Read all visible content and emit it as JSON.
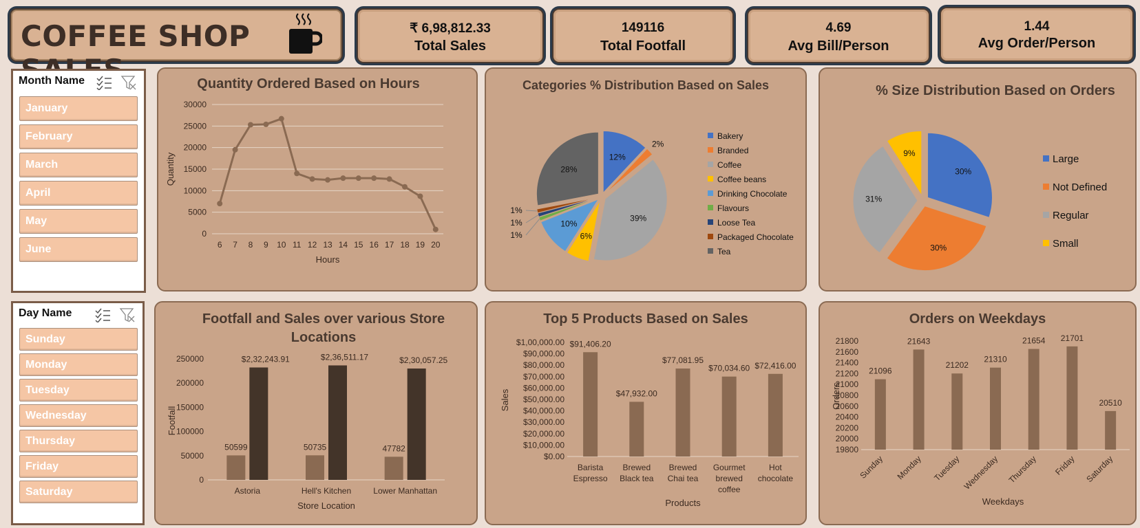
{
  "dashboard": {
    "title": "COFFEE SHOP SALES",
    "kpis": [
      {
        "value": "₹ 6,98,812.33",
        "label": "Total Sales"
      },
      {
        "value": "149116",
        "label": "Total Footfall"
      },
      {
        "value": "4.69",
        "label": "Avg Bill/Person"
      },
      {
        "value": "1.44",
        "label": "Avg Order/Person"
      }
    ]
  },
  "slicers": {
    "month": {
      "title": "Month Name",
      "items": [
        "January",
        "February",
        "March",
        "April",
        "May",
        "June"
      ]
    },
    "day": {
      "title": "Day Name",
      "items": [
        "Sunday",
        "Monday",
        "Tuesday",
        "Wednesday",
        "Thursday",
        "Friday",
        "Saturday"
      ]
    }
  },
  "colors": {
    "bar": "#8a6a52",
    "bar_dark": "#433429",
    "line": "#8a6a52",
    "panel": "#c9a489"
  },
  "chart_data": [
    {
      "id": "hours",
      "type": "line",
      "title": "Quantity Ordered Based on Hours",
      "xlabel": "Hours",
      "ylabel": "Quantity",
      "x": [
        6,
        7,
        8,
        9,
        10,
        11,
        12,
        13,
        14,
        15,
        16,
        17,
        18,
        19,
        20
      ],
      "values": [
        7000,
        19500,
        25300,
        25400,
        26700,
        14000,
        12700,
        12500,
        12900,
        12900,
        12900,
        12700,
        10900,
        8700,
        1000
      ],
      "ylim": [
        0,
        30000
      ],
      "yticks": [
        0,
        5000,
        10000,
        15000,
        20000,
        25000,
        30000
      ],
      "grid": true
    },
    {
      "id": "categories",
      "type": "pie",
      "title": "Categories % Distribution Based on Sales",
      "legend_position": "right",
      "labels": [
        "Bakery",
        "Branded",
        "Coffee",
        "Coffee beans",
        "Drinking Chocolate",
        "Flavours",
        "Loose Tea",
        "Packaged Chocolate",
        "Tea"
      ],
      "values": [
        12,
        2,
        39,
        6,
        10,
        1,
        1,
        1,
        28
      ],
      "data_labels": [
        "12%",
        "2%",
        "39%",
        "6%",
        "10%",
        "1%",
        "1%",
        "1%",
        "28%"
      ],
      "colors": [
        "#4472c4",
        "#ed7d31",
        "#a5a5a5",
        "#ffc000",
        "#5b9bd5",
        "#70ad47",
        "#264478",
        "#9e480e",
        "#636363"
      ]
    },
    {
      "id": "sizes",
      "type": "pie",
      "title": "% Size Distribution Based on Orders",
      "legend_position": "right",
      "labels": [
        "Large",
        "Not Defined",
        "Regular",
        "Small"
      ],
      "values": [
        30,
        30,
        31,
        9
      ],
      "data_labels": [
        "30%",
        "30%",
        "31%",
        "9%"
      ],
      "colors": [
        "#4472c4",
        "#ed7d31",
        "#a5a5a5",
        "#ffc000"
      ]
    },
    {
      "id": "stores",
      "type": "bar",
      "title": "Footfall and Sales over various Store Locations",
      "title_lines": [
        "Footfall and Sales over various Store",
        "Locations"
      ],
      "xlabel": "Store Location",
      "ylabel": "Footfall",
      "categories": [
        "Astoria",
        "Hell's Kitchen",
        "Lower Manhattan"
      ],
      "series": [
        {
          "values": [
            50599,
            50735,
            47782
          ],
          "labels": [
            "50599",
            "50735",
            "47782"
          ]
        },
        {
          "values": [
            232243.91,
            236511.17,
            230057.25
          ],
          "labels": [
            "$2,32,243.91",
            "$2,36,511.17",
            "$2,30,057.25"
          ]
        }
      ],
      "ylim": [
        0,
        250000
      ],
      "yticks": [
        "0",
        "50000",
        "100000",
        "150000",
        "200000",
        "250000"
      ]
    },
    {
      "id": "products",
      "type": "bar",
      "title": "Top 5 Products Based on Sales",
      "xlabel": "Products",
      "ylabel": "Sales",
      "categories": [
        [
          "Barista",
          "Espresso"
        ],
        [
          "Brewed",
          "Black tea"
        ],
        [
          "Brewed",
          "Chai tea"
        ],
        [
          "Gourmet",
          "brewed",
          "coffee"
        ],
        [
          "Hot",
          "chocolate"
        ]
      ],
      "values": [
        91406.2,
        47932.0,
        77081.95,
        70034.6,
        72416.0
      ],
      "data_labels": [
        "$91,406.20",
        "$47,932.00",
        "$77,081.95",
        "$70,034.60",
        "$72,416.00"
      ],
      "ylim": [
        0,
        100000
      ],
      "yticks": [
        "$0.00",
        "$10,000.00",
        "$20,000.00",
        "$30,000.00",
        "$40,000.00",
        "$50,000.00",
        "$60,000.00",
        "$70,000.00",
        "$80,000.00",
        "$90,000.00",
        "$1,00,000.00"
      ]
    },
    {
      "id": "weekdays",
      "type": "bar",
      "title": "Orders on Weekdays",
      "xlabel": "Weekdays",
      "ylabel": "Orders",
      "categories": [
        "Sunday",
        "Monday",
        "Tuesday",
        "Wednesday",
        "Thursday",
        "Friday",
        "Saturday"
      ],
      "values": [
        21096,
        21643,
        21202,
        21310,
        21654,
        21701,
        20510
      ],
      "data_labels": [
        "21096",
        "21643",
        "21202",
        "21310",
        "21654",
        "21701",
        "20510"
      ],
      "ylim": [
        19800,
        21800
      ],
      "yticks": [
        "19800",
        "20000",
        "20200",
        "20400",
        "20600",
        "20800",
        "21000",
        "21200",
        "21400",
        "21600",
        "21800"
      ]
    }
  ]
}
